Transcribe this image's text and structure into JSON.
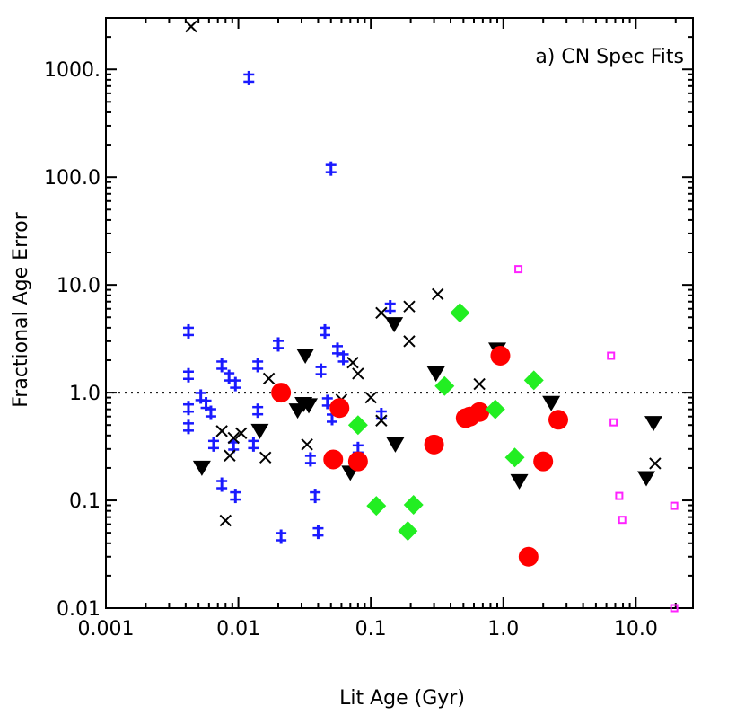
{
  "chart_data": {
    "type": "scatter",
    "title": "",
    "annotation": "a) CN Spec Fits",
    "xlabel": "Lit Age (Gyr)",
    "ylabel": "Fractional Age Error",
    "xscale": "log",
    "yscale": "log",
    "xlim": [
      0.001,
      27
    ],
    "ylim": [
      0.01,
      3000
    ],
    "xticks": [
      {
        "value": 0.001,
        "label": "0.001"
      },
      {
        "value": 0.01,
        "label": "0.01"
      },
      {
        "value": 0.1,
        "label": "0.1"
      },
      {
        "value": 1.0,
        "label": "1.0"
      },
      {
        "value": 10.0,
        "label": "10.0"
      }
    ],
    "yticks": [
      {
        "value": 0.01,
        "label": "0.01"
      },
      {
        "value": 0.1,
        "label": "0.1"
      },
      {
        "value": 1.0,
        "label": "1.0"
      },
      {
        "value": 10.0,
        "label": "10.0"
      },
      {
        "value": 100.0,
        "label": "100.0"
      },
      {
        "value": 1000.0,
        "label": "1000."
      }
    ],
    "reference_line": {
      "y": 1.0,
      "style": "dotted"
    },
    "series": [
      {
        "name": "blue-asterisk",
        "marker": "asterisk",
        "color": "#1a1aff",
        "points": [
          [
            0.0042,
            3.7
          ],
          [
            0.0042,
            1.45
          ],
          [
            0.0042,
            0.72
          ],
          [
            0.0042,
            0.48
          ],
          [
            0.0052,
            0.92
          ],
          [
            0.0057,
            0.78
          ],
          [
            0.0062,
            0.65
          ],
          [
            0.0065,
            0.33
          ],
          [
            0.0075,
            1.8
          ],
          [
            0.0075,
            0.14
          ],
          [
            0.0085,
            1.4
          ],
          [
            0.0095,
            1.2
          ],
          [
            0.0092,
            0.32
          ],
          [
            0.0095,
            0.11
          ],
          [
            0.012,
            830
          ],
          [
            0.013,
            0.33
          ],
          [
            0.014,
            1.8
          ],
          [
            0.014,
            0.68
          ],
          [
            0.02,
            2.8
          ],
          [
            0.021,
            0.046
          ],
          [
            0.035,
            0.24
          ],
          [
            0.038,
            0.11
          ],
          [
            0.04,
            0.051
          ],
          [
            0.042,
            1.6
          ],
          [
            0.045,
            3.7
          ],
          [
            0.047,
            0.82
          ],
          [
            0.05,
            120
          ],
          [
            0.051,
            0.58
          ],
          [
            0.056,
            2.5
          ],
          [
            0.062,
            2.1
          ],
          [
            0.08,
            0.3
          ],
          [
            0.12,
            0.62
          ],
          [
            0.14,
            6.2
          ]
        ]
      },
      {
        "name": "black-cross",
        "marker": "cross",
        "color": "#000000",
        "points": [
          [
            0.0044,
            2500
          ],
          [
            0.0075,
            0.44
          ],
          [
            0.008,
            0.065
          ],
          [
            0.0086,
            0.26
          ],
          [
            0.0092,
            0.38
          ],
          [
            0.0105,
            0.42
          ],
          [
            0.016,
            0.25
          ],
          [
            0.017,
            1.35
          ],
          [
            0.033,
            0.33
          ],
          [
            0.06,
            0.86
          ],
          [
            0.073,
            1.9
          ],
          [
            0.08,
            1.5
          ],
          [
            0.1,
            0.9
          ],
          [
            0.12,
            5.5
          ],
          [
            0.12,
            0.55
          ],
          [
            0.195,
            6.3
          ],
          [
            0.195,
            3.0
          ],
          [
            0.32,
            8.2
          ],
          [
            0.66,
            1.2
          ],
          [
            14.0,
            0.22
          ]
        ]
      },
      {
        "name": "black-triangle",
        "marker": "triangle-down",
        "color": "#000000",
        "points": [
          [
            0.0053,
            0.2
          ],
          [
            0.0145,
            0.44
          ],
          [
            0.028,
            0.68
          ],
          [
            0.031,
            0.78
          ],
          [
            0.032,
            2.2
          ],
          [
            0.034,
            0.76
          ],
          [
            0.07,
            0.18
          ],
          [
            0.15,
            4.3
          ],
          [
            0.153,
            0.33
          ],
          [
            0.31,
            1.5
          ],
          [
            0.9,
            2.5
          ],
          [
            1.32,
            0.15
          ],
          [
            2.3,
            0.8
          ],
          [
            12.0,
            0.16
          ],
          [
            13.6,
            0.52
          ]
        ]
      },
      {
        "name": "red-circle",
        "marker": "circle",
        "color": "#ff0000",
        "points": [
          [
            0.021,
            1.0
          ],
          [
            0.052,
            0.24
          ],
          [
            0.058,
            0.72
          ],
          [
            0.08,
            0.23
          ],
          [
            0.3,
            0.33
          ],
          [
            0.52,
            0.58
          ],
          [
            0.56,
            0.6
          ],
          [
            0.66,
            0.66
          ],
          [
            0.95,
            2.2
          ],
          [
            1.55,
            0.03
          ],
          [
            2.0,
            0.23
          ],
          [
            2.6,
            0.56
          ]
        ]
      },
      {
        "name": "green-diamond",
        "marker": "diamond",
        "color": "#22ee22",
        "points": [
          [
            0.08,
            0.5
          ],
          [
            0.11,
            0.089
          ],
          [
            0.19,
            0.052
          ],
          [
            0.21,
            0.091
          ],
          [
            0.36,
            1.15
          ],
          [
            0.47,
            5.5
          ],
          [
            0.87,
            0.7
          ],
          [
            1.22,
            0.25
          ],
          [
            1.7,
            1.3
          ]
        ]
      },
      {
        "name": "magenta-square",
        "marker": "square-open",
        "color": "#ff22ff",
        "points": [
          [
            1.3,
            14
          ],
          [
            6.5,
            2.2
          ],
          [
            6.8,
            0.53
          ],
          [
            7.5,
            0.11
          ],
          [
            7.9,
            0.066
          ],
          [
            19.5,
            0.089
          ],
          [
            19.5,
            0.01
          ]
        ]
      }
    ]
  }
}
